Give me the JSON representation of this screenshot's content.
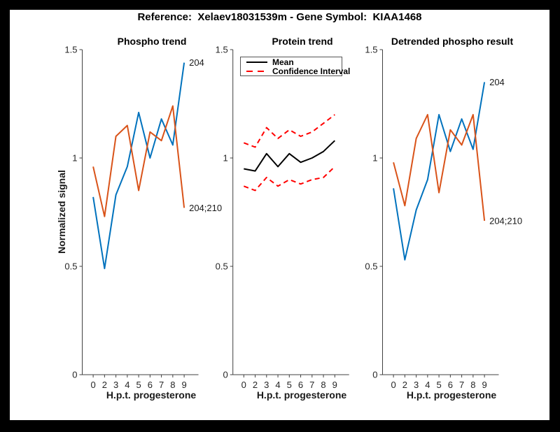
{
  "figure": {
    "title": "Reference:  Xelaev18031539m - Gene Symbol:  KIAA1468"
  },
  "colors": {
    "blue": "#0072BD",
    "orange": "#D95319",
    "red": "#FF0000",
    "black": "#000000",
    "axis": "#404040"
  },
  "axes": {
    "ylabel": "Normalized signal",
    "xlabel": "H.p.t. progesterone",
    "ylim": [
      0,
      1.5
    ],
    "ytick_values": [
      0,
      0.5,
      1,
      1.5
    ],
    "ytick_labels": [
      "0",
      "0.5",
      "1",
      "1.5"
    ],
    "xtick_labels": [
      "0",
      "2",
      "3",
      "4",
      "5",
      "6",
      "7",
      "8",
      "9"
    ]
  },
  "chart_data": [
    {
      "type": "line",
      "title": "Phospho trend",
      "xlabel": "H.p.t. progesterone",
      "ylabel": "Normalized signal",
      "x_ticklabels": [
        "0",
        "2",
        "3",
        "4",
        "5",
        "6",
        "7",
        "8",
        "9"
      ],
      "ylim": [
        0,
        1.5
      ],
      "grid": false,
      "series": [
        {
          "name": "204",
          "color_key": "blue",
          "style": "solid",
          "end_label": "204",
          "values": [
            0.82,
            0.49,
            0.83,
            0.96,
            1.21,
            1.0,
            1.18,
            1.06,
            1.44
          ]
        },
        {
          "name": "204;210",
          "color_key": "orange",
          "style": "solid",
          "end_label": "204;210",
          "values": [
            0.96,
            0.73,
            1.1,
            1.15,
            0.85,
            1.12,
            1.08,
            1.24,
            0.77
          ]
        }
      ]
    },
    {
      "type": "line",
      "title": "Protein trend",
      "xlabel": "H.p.t. progesterone",
      "x_ticklabels": [
        "0",
        "2",
        "3",
        "4",
        "5",
        "6",
        "7",
        "8",
        "9"
      ],
      "ylim": [
        0,
        1.5
      ],
      "grid": false,
      "legend": {
        "position": "top-left",
        "entries": [
          {
            "label": "Mean",
            "style": "solid",
            "color_key": "black"
          },
          {
            "label": "Confidence Interval",
            "style": "dashed",
            "color_key": "red"
          }
        ]
      },
      "series": [
        {
          "name": "Mean",
          "color_key": "black",
          "style": "solid",
          "values": [
            0.95,
            0.94,
            1.02,
            0.96,
            1.02,
            0.98,
            1.0,
            1.03,
            1.08
          ]
        },
        {
          "name": "Confidence Interval upper",
          "color_key": "red",
          "style": "dashed",
          "values": [
            1.07,
            1.05,
            1.14,
            1.09,
            1.13,
            1.1,
            1.12,
            1.16,
            1.2
          ]
        },
        {
          "name": "Confidence Interval lower",
          "color_key": "red",
          "style": "dashed",
          "values": [
            0.87,
            0.85,
            0.91,
            0.87,
            0.9,
            0.88,
            0.9,
            0.91,
            0.96
          ]
        }
      ]
    },
    {
      "type": "line",
      "title": "Detrended phospho result",
      "xlabel": "H.p.t. progesterone",
      "x_ticklabels": [
        "0",
        "2",
        "3",
        "4",
        "5",
        "6",
        "7",
        "8",
        "9"
      ],
      "ylim": [
        0,
        1.5
      ],
      "grid": false,
      "series": [
        {
          "name": "204",
          "color_key": "blue",
          "style": "solid",
          "end_label": "204",
          "values": [
            0.86,
            0.53,
            0.76,
            0.9,
            1.2,
            1.03,
            1.18,
            1.04,
            1.35
          ]
        },
        {
          "name": "204;210",
          "color_key": "orange",
          "style": "solid",
          "end_label": "204;210",
          "values": [
            0.98,
            0.78,
            1.09,
            1.2,
            0.84,
            1.13,
            1.06,
            1.2,
            0.71
          ]
        }
      ]
    }
  ]
}
